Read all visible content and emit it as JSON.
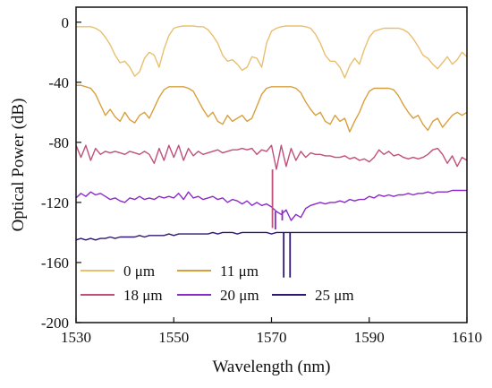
{
  "chart_data": {
    "type": "line",
    "title": "",
    "xlabel": "Wavelength (nm)",
    "ylabel": "Optical Power (dB)",
    "xlim": [
      1530,
      1610
    ],
    "ylim": [
      -200,
      10
    ],
    "xticks": [
      1530,
      1550,
      1570,
      1590,
      1610
    ],
    "xtick_labels": [
      "1530",
      "1550",
      "1570",
      "1590",
      "1610"
    ],
    "yticks": [
      0,
      -40,
      -80,
      -120,
      -160,
      -200
    ],
    "ytick_labels": [
      "0",
      "-40",
      "-80",
      "-120",
      "-160",
      "-200"
    ],
    "grid": false,
    "legend_position": "bottom-left",
    "series": [
      {
        "name": "0 μm",
        "color": "#E8C070",
        "x": [
          1530,
          1531,
          1532,
          1533,
          1534,
          1535,
          1536,
          1537,
          1538,
          1539,
          1540,
          1541,
          1542,
          1543,
          1544,
          1545,
          1546,
          1547,
          1548,
          1549,
          1550,
          1551,
          1552,
          1553,
          1554,
          1555,
          1556,
          1557,
          1558,
          1559,
          1560,
          1561,
          1562,
          1563,
          1564,
          1565,
          1566,
          1567,
          1568,
          1569,
          1570,
          1571,
          1572,
          1573,
          1574,
          1575,
          1576,
          1577,
          1578,
          1579,
          1580,
          1581,
          1582,
          1583,
          1584,
          1585,
          1586,
          1587,
          1588,
          1589,
          1590,
          1591,
          1592,
          1593,
          1594,
          1595,
          1596,
          1597,
          1598,
          1599,
          1600,
          1601,
          1602,
          1603,
          1604,
          1605,
          1606,
          1607,
          1608,
          1609,
          1610
        ],
        "y": [
          -3,
          -3,
          -3,
          -3,
          -4,
          -6,
          -10,
          -15,
          -22,
          -27,
          -26,
          -30,
          -36,
          -33,
          -24,
          -20,
          -22,
          -30,
          -18,
          -9,
          -4,
          -3,
          -2.5,
          -2.5,
          -2.5,
          -3,
          -3,
          -5,
          -9,
          -14,
          -22,
          -26,
          -25,
          -28,
          -32,
          -30,
          -23,
          -24,
          -30,
          -14,
          -6,
          -4,
          -3,
          -2.5,
          -2.5,
          -2.5,
          -2.5,
          -3,
          -4,
          -8,
          -14,
          -22,
          -26,
          -26,
          -30,
          -37,
          -29,
          -24,
          -28,
          -18,
          -10,
          -6,
          -5,
          -4,
          -4,
          -4,
          -4,
          -5,
          -7,
          -11,
          -16,
          -22,
          -24,
          -28,
          -31,
          -27,
          -23,
          -28,
          -25,
          -20,
          -23
        ]
      },
      {
        "name": "11 μm",
        "color": "#D8A03C",
        "x": [
          1530,
          1531,
          1532,
          1533,
          1534,
          1535,
          1536,
          1537,
          1538,
          1539,
          1540,
          1541,
          1542,
          1543,
          1544,
          1545,
          1546,
          1547,
          1548,
          1549,
          1550,
          1551,
          1552,
          1553,
          1554,
          1555,
          1556,
          1557,
          1558,
          1559,
          1560,
          1561,
          1562,
          1563,
          1564,
          1565,
          1566,
          1567,
          1568,
          1569,
          1570,
          1571,
          1572,
          1573,
          1574,
          1575,
          1576,
          1577,
          1578,
          1579,
          1580,
          1581,
          1582,
          1583,
          1584,
          1585,
          1586,
          1587,
          1588,
          1589,
          1590,
          1591,
          1592,
          1593,
          1594,
          1595,
          1596,
          1597,
          1598,
          1599,
          1600,
          1601,
          1602,
          1603,
          1604,
          1605,
          1606,
          1607,
          1608,
          1609,
          1610
        ],
        "y": [
          -42,
          -42,
          -43,
          -44,
          -48,
          -55,
          -62,
          -58,
          -63,
          -66,
          -60,
          -65,
          -67,
          -62,
          -60,
          -64,
          -57,
          -50,
          -45,
          -43,
          -43,
          -43,
          -43,
          -44,
          -46,
          -52,
          -58,
          -63,
          -60,
          -66,
          -68,
          -62,
          -66,
          -64,
          -62,
          -66,
          -64,
          -56,
          -48,
          -44,
          -43,
          -43,
          -43,
          -43,
          -43,
          -44,
          -47,
          -53,
          -58,
          -62,
          -60,
          -66,
          -68,
          -62,
          -66,
          -64,
          -73,
          -66,
          -60,
          -52,
          -46,
          -44,
          -44,
          -44,
          -44,
          -45,
          -49,
          -55,
          -60,
          -64,
          -62,
          -68,
          -72,
          -66,
          -64,
          -70,
          -66,
          -62,
          -60,
          -62,
          -60
        ]
      },
      {
        "name": "18 μm",
        "color": "#C0507A",
        "x": [
          1530,
          1531,
          1532,
          1533,
          1534,
          1535,
          1536,
          1537,
          1538,
          1539,
          1540,
          1541,
          1542,
          1543,
          1544,
          1545,
          1546,
          1547,
          1548,
          1549,
          1550,
          1551,
          1552,
          1553,
          1554,
          1555,
          1556,
          1557,
          1558,
          1559,
          1560,
          1561,
          1562,
          1563,
          1564,
          1565,
          1566,
          1567,
          1568,
          1569,
          1570,
          1571,
          1572,
          1573,
          1574,
          1575,
          1576,
          1577,
          1578,
          1579,
          1580,
          1581,
          1582,
          1583,
          1584,
          1585,
          1586,
          1587,
          1588,
          1589,
          1590,
          1591,
          1592,
          1593,
          1594,
          1595,
          1596,
          1597,
          1598,
          1599,
          1600,
          1601,
          1602,
          1603,
          1604,
          1605,
          1606,
          1607,
          1608,
          1609,
          1610
        ],
        "y": [
          -82,
          -90,
          -82,
          -92,
          -84,
          -88,
          -86,
          -87,
          -86,
          -87,
          -88,
          -86,
          -87,
          -88,
          -86,
          -88,
          -94,
          -84,
          -92,
          -82,
          -90,
          -82,
          -92,
          -84,
          -89,
          -86,
          -88,
          -87,
          -86,
          -85,
          -87,
          -86,
          -85,
          -85,
          -84,
          -85,
          -84,
          -88,
          -85,
          -86,
          -82,
          -98,
          -82,
          -96,
          -84,
          -92,
          -86,
          -90,
          -87,
          -88,
          -88,
          -89,
          -89,
          -90,
          -90,
          -89,
          -91,
          -90,
          -92,
          -91,
          -93,
          -90,
          -85,
          -88,
          -86,
          -89,
          -88,
          -90,
          -91,
          -90,
          -91,
          -90,
          -88,
          -85,
          -84,
          -88,
          -94,
          -89,
          -96,
          -90,
          -92
        ]
      },
      {
        "name": "20 μm",
        "color": "#8C2CC8",
        "x": [
          1530,
          1531,
          1532,
          1533,
          1534,
          1535,
          1536,
          1537,
          1538,
          1539,
          1540,
          1541,
          1542,
          1543,
          1544,
          1545,
          1546,
          1547,
          1548,
          1549,
          1550,
          1551,
          1552,
          1553,
          1554,
          1555,
          1556,
          1557,
          1558,
          1559,
          1560,
          1561,
          1562,
          1563,
          1564,
          1565,
          1566,
          1567,
          1568,
          1569,
          1570,
          1571,
          1572,
          1573,
          1574,
          1575,
          1576,
          1577,
          1578,
          1579,
          1580,
          1581,
          1582,
          1583,
          1584,
          1585,
          1586,
          1587,
          1588,
          1589,
          1590,
          1591,
          1592,
          1593,
          1594,
          1595,
          1596,
          1597,
          1598,
          1599,
          1600,
          1601,
          1602,
          1603,
          1604,
          1605,
          1606,
          1607,
          1608,
          1609,
          1610
        ],
        "y": [
          -117,
          -114,
          -116,
          -113,
          -115,
          -114,
          -116,
          -118,
          -117,
          -119,
          -120,
          -117,
          -118,
          -116,
          -118,
          -117,
          -118,
          -116,
          -117,
          -116,
          -117,
          -114,
          -118,
          -113,
          -117,
          -116,
          -118,
          -117,
          -116,
          -118,
          -117,
          -120,
          -118,
          -119,
          -121,
          -119,
          -122,
          -120,
          -122,
          -121,
          -123,
          -126,
          -128,
          -125,
          -132,
          -128,
          -130,
          -124,
          -122,
          -121,
          -120,
          -121,
          -120,
          -120,
          -119,
          -120,
          -118,
          -119,
          -118,
          -118,
          -116,
          -117,
          -115,
          -116,
          -115,
          -116,
          -115,
          -115,
          -114,
          -115,
          -114,
          -114,
          -113,
          -114,
          -113,
          -113,
          -113,
          -112,
          -112,
          -112,
          -112
        ]
      },
      {
        "name": "25 μm",
        "color": "#301870",
        "x": [
          1530,
          1531,
          1532,
          1533,
          1534,
          1535,
          1536,
          1537,
          1538,
          1539,
          1540,
          1541,
          1542,
          1543,
          1544,
          1545,
          1546,
          1547,
          1548,
          1549,
          1550,
          1551,
          1552,
          1553,
          1554,
          1555,
          1556,
          1557,
          1558,
          1559,
          1560,
          1561,
          1562,
          1563,
          1564,
          1565,
          1566,
          1567,
          1568,
          1569,
          1570,
          1571,
          1572,
          1573,
          1574,
          1575,
          1576,
          1577,
          1578,
          1579,
          1580,
          1581,
          1582,
          1583,
          1584,
          1585,
          1586,
          1587,
          1588,
          1589,
          1590,
          1591,
          1592,
          1593,
          1594,
          1595,
          1596,
          1597,
          1598,
          1599,
          1600,
          1601,
          1602,
          1603,
          1604,
          1605,
          1606,
          1607,
          1608,
          1609,
          1610
        ],
        "y": [
          -145,
          -144,
          -145,
          -144,
          -145,
          -144,
          -144,
          -143,
          -144,
          -143,
          -143,
          -143,
          -143,
          -142,
          -143,
          -142,
          -142,
          -142,
          -142,
          -141,
          -142,
          -141,
          -141,
          -141,
          -141,
          -141,
          -141,
          -141,
          -140,
          -141,
          -140,
          -140,
          -140,
          -141,
          -140,
          -140,
          -140,
          -140,
          -140,
          -140,
          -141,
          -140,
          -140,
          -140,
          -140,
          -140,
          -140,
          -140,
          -140,
          -140,
          -140,
          -140,
          -140,
          -140,
          -140,
          -140,
          -140,
          -140,
          -140,
          -140,
          -140,
          -140,
          -140,
          -140,
          -140,
          -140,
          -140,
          -140,
          -140,
          -140,
          -140,
          -140,
          -140,
          -140,
          -140,
          -140,
          -140,
          -140,
          -140,
          -140,
          -140
        ]
      }
    ],
    "dips": [
      {
        "series": "18 μm",
        "x": 1570.2,
        "y": -137
      },
      {
        "series": "20 μm",
        "x": 1570.8,
        "y": -138
      },
      {
        "series": "20 μm",
        "x": 1572.2,
        "y": -132
      },
      {
        "series": "20 μm",
        "x": 1575.5,
        "y": -130
      },
      {
        "series": "25 μm",
        "x": 1572.5,
        "y": -170
      },
      {
        "series": "25 μm",
        "x": 1573.8,
        "y": -170
      }
    ]
  }
}
